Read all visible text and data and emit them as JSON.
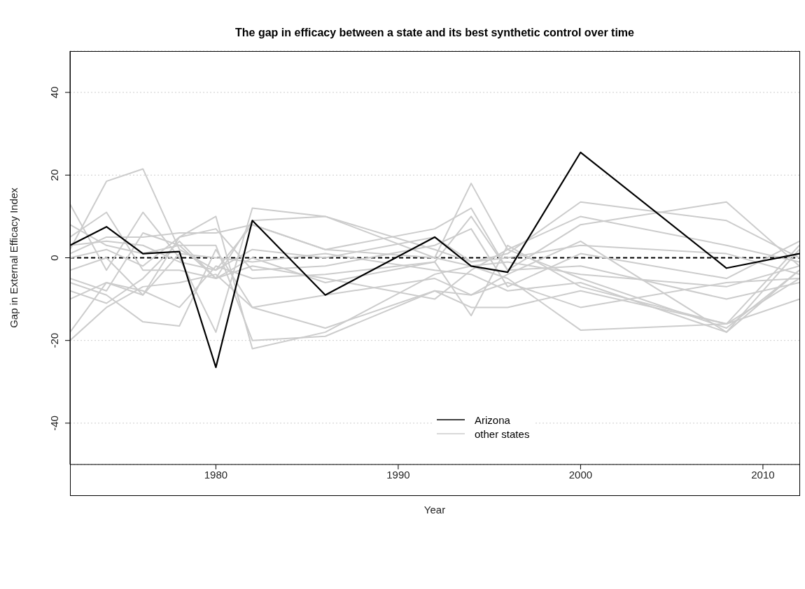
{
  "chart_data": {
    "type": "line",
    "title": "The gap in efficacy between a state and its best synthetic control over time",
    "xlabel": "Year",
    "ylabel": "Gap in External Efficacy Index",
    "x": [
      1972,
      1974,
      1976,
      1978,
      1980,
      1982,
      1986,
      1992,
      1994,
      1996,
      2000,
      2008,
      2012
    ],
    "xlim": [
      1972,
      2012
    ],
    "xticks": [
      1980,
      1990,
      2000,
      2010
    ],
    "ylim": [
      -50,
      50
    ],
    "yticks": [
      -40,
      -20,
      0,
      20,
      40
    ],
    "grid": "y",
    "legend": "bottom",
    "marker": "none",
    "line_style": "solid",
    "ref_lines": [
      {
        "axis": "y",
        "value": 0,
        "color": "#000000",
        "line_style": "dashed"
      }
    ],
    "series": [
      {
        "name": "Arizona",
        "color": "#000000",
        "values": [
          3,
          7.5,
          1,
          1.5,
          -26.5,
          9,
          -9,
          5,
          -2,
          -3.5,
          25.5,
          -2.5,
          1
        ]
      },
      {
        "name": "other states",
        "color": "#cccccc",
        "values": [
          2,
          18.5,
          21.5,
          2,
          -3,
          8,
          2,
          0,
          -2,
          -1,
          -4,
          -7,
          -2
        ]
      },
      {
        "color": "#cccccc",
        "values": [
          13,
          -3,
          11,
          0,
          -18,
          12,
          10,
          0,
          18,
          2,
          -5,
          -17,
          -3
        ]
      },
      {
        "color": "#cccccc",
        "values": [
          -20,
          -12,
          -7,
          -6,
          -4,
          -12,
          -17,
          -8,
          -12,
          -12,
          -8,
          -16,
          -5
        ]
      },
      {
        "color": "#cccccc",
        "values": [
          -18,
          -6,
          -9,
          5,
          10,
          -22,
          -18,
          -4,
          -2,
          -5,
          -17.5,
          -16,
          -10
        ]
      },
      {
        "color": "#cccccc",
        "values": [
          5,
          11,
          -3,
          -3,
          -5,
          9,
          10,
          2,
          -1,
          1,
          13.5,
          9,
          0
        ]
      },
      {
        "color": "#cccccc",
        "values": [
          1,
          5,
          5,
          6,
          6,
          8,
          2,
          7,
          12,
          -3,
          8,
          13.5,
          -2
        ]
      },
      {
        "color": "#cccccc",
        "values": [
          -5,
          -8,
          6,
          3,
          3,
          -20,
          -19,
          -8,
          -9,
          -6,
          -12,
          -6,
          -5
        ]
      },
      {
        "color": "#cccccc",
        "values": [
          -6,
          -9,
          -15.5,
          -16.5,
          2,
          -12,
          -9,
          -5,
          -9,
          -4,
          4,
          -18,
          2
        ]
      },
      {
        "color": "#cccccc",
        "values": [
          -8,
          -11,
          -5,
          4,
          -5,
          -2,
          -5,
          -10,
          -3,
          2,
          10,
          3,
          -1
        ]
      },
      {
        "color": "#cccccc",
        "values": [
          0,
          2,
          -2,
          5,
          7,
          -3,
          -2,
          3,
          7,
          -7,
          1,
          -5,
          4
        ]
      },
      {
        "color": "#cccccc",
        "values": [
          -10,
          -6,
          -8,
          -12,
          -2,
          -5,
          -4,
          -1,
          10,
          -3,
          -2,
          -10,
          -6
        ]
      },
      {
        "color": "#cccccc",
        "values": [
          3,
          4,
          3,
          -1,
          -3,
          2,
          0,
          5,
          -1,
          0,
          3,
          1,
          -4
        ]
      },
      {
        "color": "#cccccc",
        "values": [
          -3,
          0,
          -9,
          1,
          0,
          -1,
          1,
          -3,
          -4,
          -8,
          -6,
          -18,
          -3
        ]
      },
      {
        "color": "#cccccc",
        "values": [
          8,
          3,
          1,
          3,
          -5,
          0,
          -6,
          -1,
          -14,
          3,
          -7,
          -16,
          3
        ]
      }
    ]
  }
}
